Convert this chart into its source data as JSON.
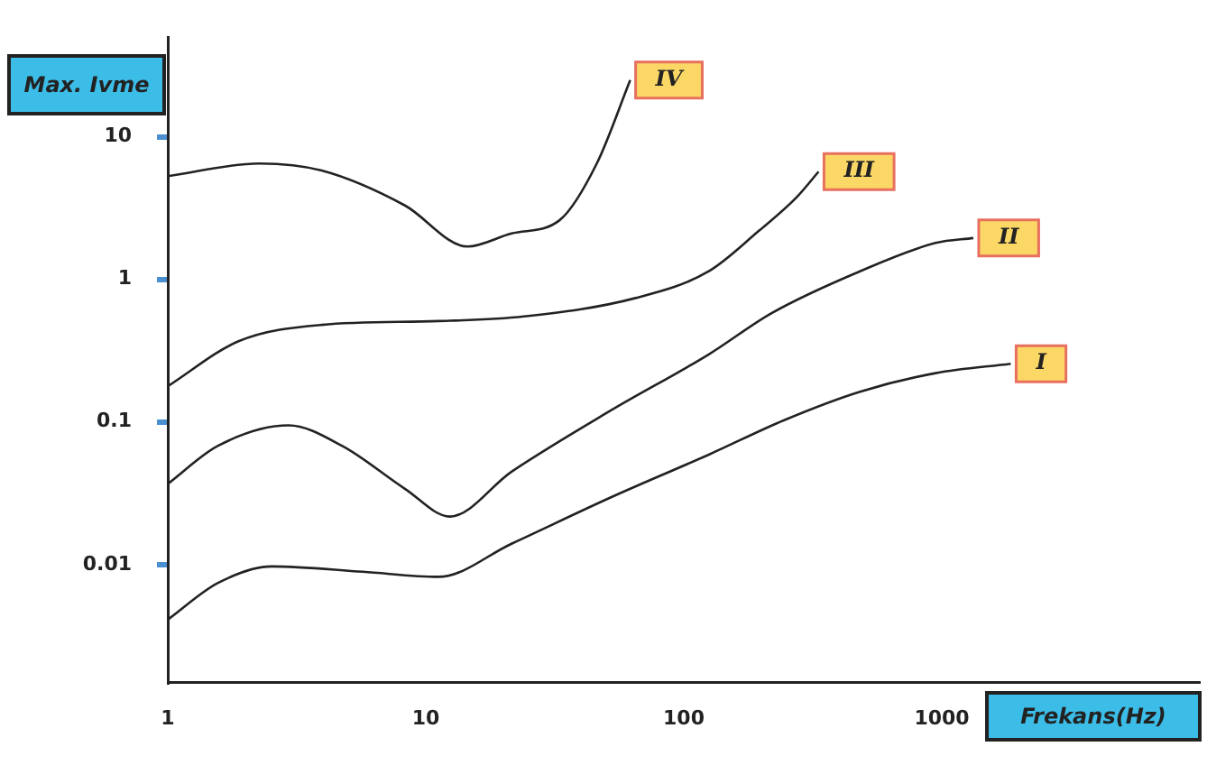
{
  "chart_data": {
    "type": "line",
    "xlabel": "Frekans(Hz)",
    "ylabel": "Max. Ivme",
    "log": "xy",
    "xlim": [
      1,
      10000
    ],
    "ylim": [
      0.0015,
      50
    ],
    "xticks": [
      1,
      10,
      100,
      1000
    ],
    "yticks": [
      0.01,
      0.1,
      1,
      10
    ],
    "grid": false,
    "legend": false,
    "marker": "none",
    "line_style": "solid",
    "series": [
      {
        "name": "IV",
        "color": "#222222",
        "x": [
          1,
          2.26,
          3.95,
          8.3,
          14.5,
          21.5,
          33,
          46,
          62
        ],
        "values": [
          5.3,
          6.5,
          5.8,
          3.3,
          1.7,
          2.1,
          2.6,
          6.5,
          25
        ]
      },
      {
        "name": "III",
        "color": "#222222",
        "x": [
          1,
          1.88,
          3.95,
          11.2,
          24,
          65,
          125,
          196,
          275,
          333
        ],
        "values": [
          0.178,
          0.368,
          0.48,
          0.51,
          0.55,
          0.74,
          1.14,
          2.2,
          3.8,
          5.7
        ]
      },
      {
        "name": "II",
        "color": "#222222",
        "x": [
          1,
          1.56,
          2.94,
          4.75,
          8.3,
          12.4,
          21.5,
          52,
          125,
          219,
          482,
          946,
          1325
        ],
        "values": [
          0.0368,
          0.0678,
          0.0946,
          0.0678,
          0.034,
          0.0217,
          0.0448,
          0.12,
          0.298,
          0.58,
          1.14,
          1.8,
          1.95
        ]
      },
      {
        "name": "I",
        "color": "#222222",
        "x": [
          1,
          1.56,
          2.53,
          5.7,
          11.2,
          21.5,
          52,
          125,
          245,
          482,
          946,
          1850
        ],
        "values": [
          0.0041,
          0.0074,
          0.0097,
          0.0089,
          0.0082,
          0.014,
          0.0295,
          0.059,
          0.103,
          0.163,
          0.22,
          0.256
        ]
      }
    ]
  }
}
